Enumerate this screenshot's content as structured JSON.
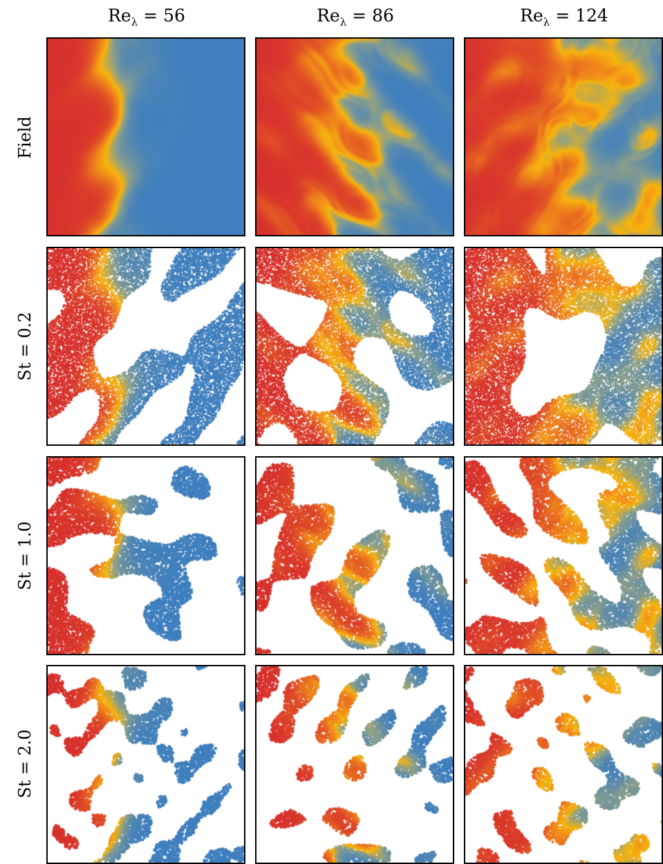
{
  "columns": [
    {
      "prefix": "Re",
      "subscript": "λ",
      "value": " = 56"
    },
    {
      "prefix": "Re",
      "subscript": "λ",
      "value": " = 86"
    },
    {
      "prefix": "Re",
      "subscript": "λ",
      "value": " = 124"
    }
  ],
  "rows": [
    "Field",
    "St = 0.2",
    "St = 1.0",
    "St = 2.0"
  ],
  "colors": {
    "red": "#d7302d",
    "orange": "#f08a1a",
    "yellow": "#f6b40e",
    "olive": "#8b9f8a",
    "blue": "#3f7fbf",
    "border": "#000000",
    "background": "#ffffff"
  }
}
